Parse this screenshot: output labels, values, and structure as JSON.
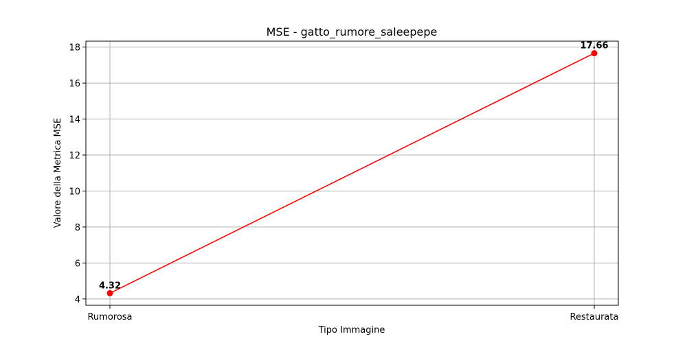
{
  "chart_data": {
    "type": "line",
    "title": "MSE - gatto_rumore_saleepepe",
    "xlabel": "Tipo Immagine",
    "ylabel": "Valore della Metrica MSE",
    "categories": [
      "Rumorosa",
      "Restaurata"
    ],
    "series": [
      {
        "values": [
          4.32,
          17.66
        ],
        "color": "#ff0000",
        "marker": "circle"
      }
    ],
    "data_labels": [
      "4.32",
      "17.66"
    ],
    "ylim": [
      3.65,
      18.33
    ],
    "yticks": [
      4,
      6,
      8,
      10,
      12,
      14,
      16,
      18
    ],
    "grid": true
  }
}
